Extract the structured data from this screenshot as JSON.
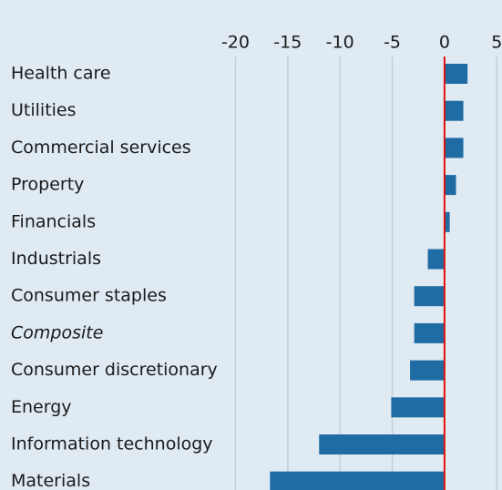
{
  "chart_data": {
    "type": "barh",
    "categories": [
      "Health care",
      "Utilities",
      "Commercial services",
      "Property",
      "Financials",
      "Industrials",
      "Consumer staples",
      "Composite",
      "Consumer discretionary",
      "Energy",
      "Information technology",
      "Materials"
    ],
    "category_styles": [
      "normal",
      "normal",
      "normal",
      "normal",
      "normal",
      "normal",
      "normal",
      "italic",
      "normal",
      "normal",
      "normal",
      "normal"
    ],
    "values": [
      2.2,
      1.8,
      1.8,
      1.1,
      0.5,
      -1.6,
      -2.9,
      -2.9,
      -3.3,
      -5.1,
      -12.0,
      -16.7
    ],
    "color": "#1f6ca5",
    "xlim": [
      -21,
      5.5
    ],
    "xticks": [
      -20,
      -15,
      -10,
      -5,
      0,
      5
    ],
    "grid": true,
    "zero_line_color": "#e3120b"
  }
}
